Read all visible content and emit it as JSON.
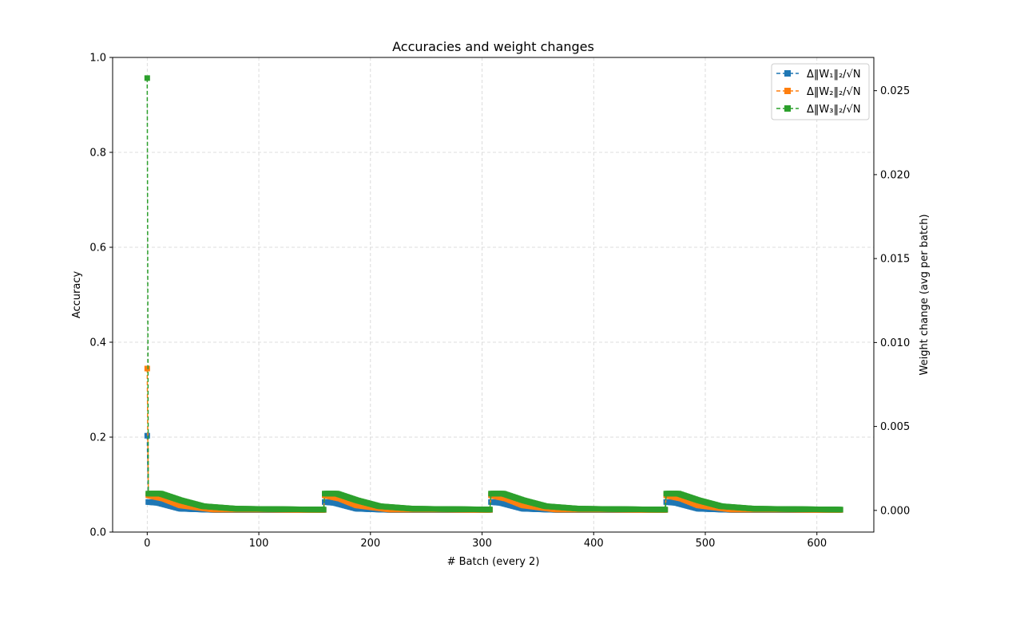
{
  "chart_data": {
    "type": "line",
    "title": "Accuracies and weight changes",
    "xlabel": "# Batch (every 2)",
    "ylabel": "Accuracy",
    "y2label": "Weight change (avg per batch)",
    "xlim": [
      -31,
      651
    ],
    "ylim": [
      0.0,
      1.0
    ],
    "y2lim": [
      -0.00129,
      0.02698
    ],
    "xticks": [
      0,
      100,
      200,
      300,
      400,
      500,
      600
    ],
    "xtick_labels": [
      "0",
      "100",
      "200",
      "300",
      "400",
      "500",
      "600"
    ],
    "yticks": [
      0.0,
      0.2,
      0.4,
      0.6,
      0.8,
      1.0
    ],
    "ytick_labels": [
      "0.0",
      "0.2",
      "0.4",
      "0.6",
      "0.8",
      "1.0"
    ],
    "y2ticks": [
      0.0,
      0.005,
      0.01,
      0.015,
      0.02,
      0.025
    ],
    "y2tick_labels": [
      "0.000",
      "0.005",
      "0.010",
      "0.015",
      "0.020",
      "0.025"
    ],
    "grid": true,
    "legend_position": "top-right",
    "axis": "y2",
    "marker": "square",
    "linestyle": "dashed",
    "segments": [
      {
        "start": 1,
        "end": 158
      },
      {
        "start": 159,
        "end": 307
      },
      {
        "start": 308,
        "end": 464
      },
      {
        "start": 465,
        "end": 621
      }
    ],
    "series": [
      {
        "name": "Δ‖W₁‖₂/√N",
        "color": "#1f77b4",
        "first": [
          0,
          0.00445
        ],
        "key_points": [
          [
            0,
            0.00445
          ],
          [
            1,
            0.0005
          ],
          [
            10,
            0.00045
          ],
          [
            30,
            0.0001
          ],
          [
            60,
            3e-05
          ],
          [
            158,
            3e-05
          ]
        ]
      },
      {
        "name": "Δ‖W₂‖₂/√N",
        "color": "#ff7f0e",
        "first": [
          0,
          0.00845
        ],
        "key_points": [
          [
            0,
            0.00845
          ],
          [
            1,
            0.0009
          ],
          [
            15,
            0.0007
          ],
          [
            30,
            0.0003
          ],
          [
            60,
            5e-05
          ],
          [
            158,
            3e-05
          ]
        ]
      },
      {
        "name": "Δ‖W₃‖₂/√N",
        "color": "#2ca02c",
        "first": [
          0,
          0.02575
        ],
        "key_points": [
          [
            0,
            0.02575
          ],
          [
            1,
            0.001
          ],
          [
            12,
            0.001
          ],
          [
            30,
            0.0006
          ],
          [
            50,
            0.00025
          ],
          [
            80,
            0.0001
          ],
          [
            158,
            5e-05
          ]
        ]
      }
    ]
  }
}
